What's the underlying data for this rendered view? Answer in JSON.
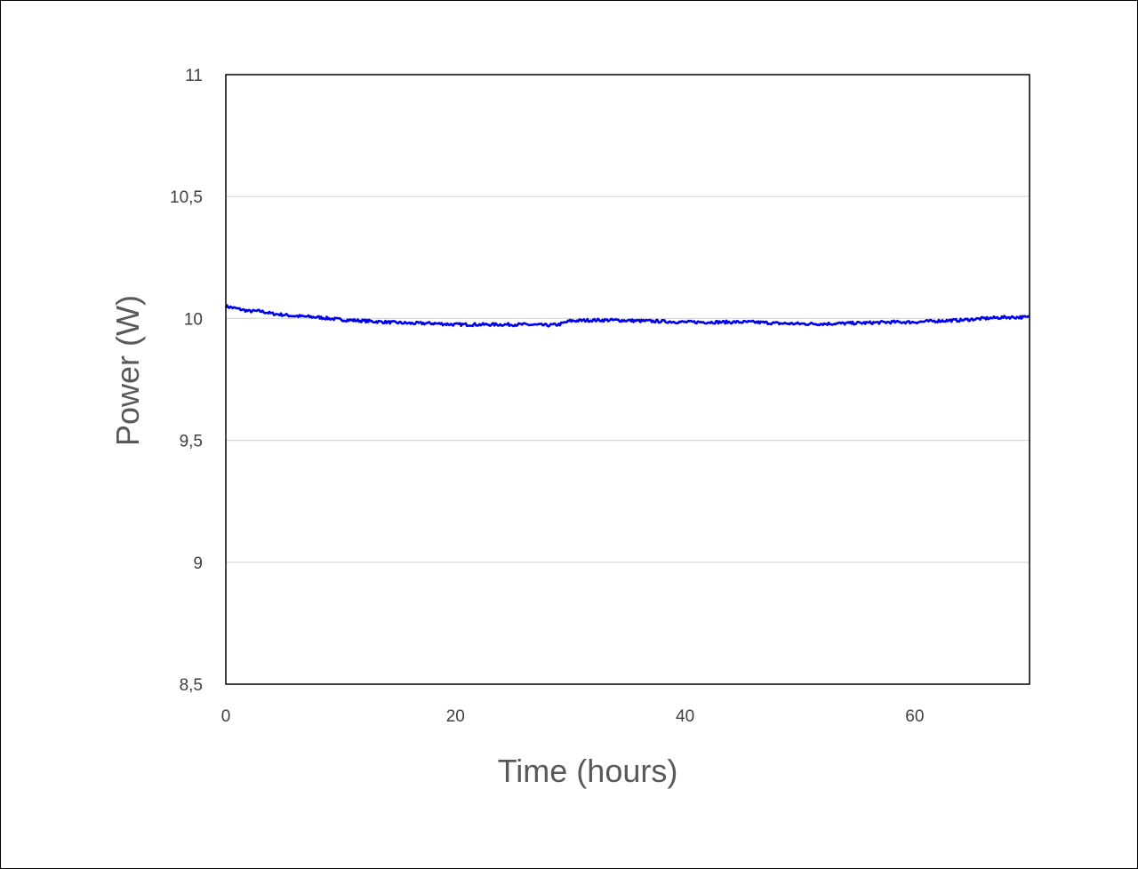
{
  "chart_data": {
    "type": "line",
    "title": "",
    "xlabel": "Time (hours)",
    "ylabel": "Power (W)",
    "xlim": [
      0,
      70
    ],
    "ylim": [
      8.5,
      11
    ],
    "x_ticks": [
      0,
      20,
      40,
      60
    ],
    "x_tick_labels": [
      "0",
      "20",
      "40",
      "60"
    ],
    "y_ticks": [
      8.5,
      9,
      9.5,
      10,
      10.5,
      11
    ],
    "y_tick_labels": [
      "8,5",
      "9",
      "9,5",
      "10",
      "10,5",
      "11"
    ],
    "grid": "horizontal",
    "legend": "none",
    "series_color": "#0000ee",
    "series": [
      {
        "x": [
          0,
          1,
          2,
          3,
          4,
          5,
          6,
          8,
          10,
          12,
          14,
          16,
          18,
          20,
          22,
          24,
          26,
          28,
          29,
          30,
          32,
          34,
          36,
          38,
          40,
          42,
          44,
          46,
          48,
          50,
          52,
          54,
          56,
          58,
          60,
          62,
          64,
          66,
          68,
          70
        ],
        "values": [
          10.05,
          10.04,
          10.03,
          10.03,
          10.02,
          10.015,
          10.01,
          10.005,
          9.995,
          9.99,
          9.985,
          9.98,
          9.98,
          9.975,
          9.975,
          9.975,
          9.975,
          9.972,
          9.975,
          9.99,
          9.993,
          9.993,
          9.99,
          9.988,
          9.985,
          9.985,
          9.985,
          9.985,
          9.98,
          9.978,
          9.978,
          9.98,
          9.982,
          9.985,
          9.985,
          9.99,
          9.993,
          10.0,
          10.005,
          10.005
        ]
      }
    ]
  }
}
